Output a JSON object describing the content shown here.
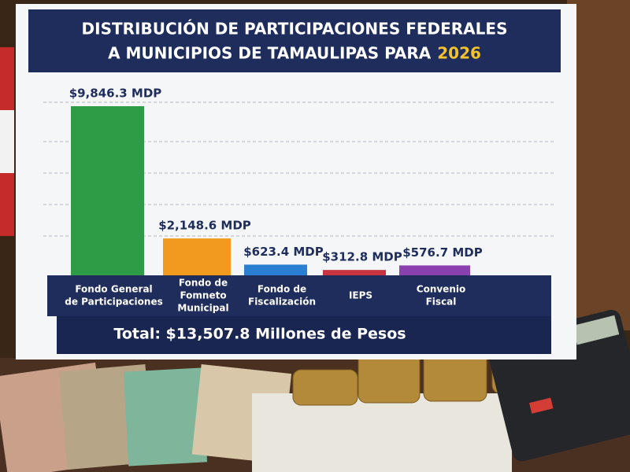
{
  "chart_data": {
    "type": "bar",
    "title": [
      "DISTRIBUCIÓN DE PARTICIPACIONES FEDERALES",
      "A MUNICIPIOS DE TAMAULIPAS PARA"
    ],
    "title_highlight": "2026",
    "categories": [
      [
        "Fondo General",
        "de Participaciones"
      ],
      [
        "Fondo de",
        "Fomneto",
        "Municipal"
      ],
      [
        "Fondo de",
        "Fiscalización"
      ],
      [
        "IEPS"
      ],
      [
        "Convenio",
        "Fiscal"
      ]
    ],
    "values": [
      9846.3,
      2148.6,
      623.4,
      312.8,
      576.7
    ],
    "value_labels": [
      "$9,846.3 MDP",
      "$2,148.6 MDP",
      "$623.4 MDP",
      "$312.8 MDP",
      "$576.7 MDP"
    ],
    "colors": [
      "#2e9b47",
      "#f29a1e",
      "#2b7fd2",
      "#c73440",
      "#8b40b0"
    ],
    "total_label": "Total: $13,507.8 Millones de Pesos"
  }
}
